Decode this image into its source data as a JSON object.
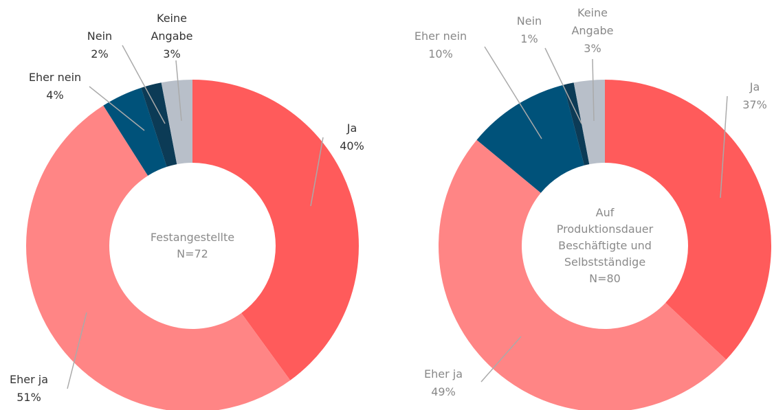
{
  "chart_data": [
    {
      "type": "donut",
      "center_label": [
        "Festangestellte",
        "N=72"
      ],
      "categories": [
        "Ja",
        "Eher ja",
        "Eher nein",
        "Nein",
        "Keine Angabe"
      ],
      "values": [
        40,
        51,
        4,
        2,
        3
      ],
      "value_labels": [
        "40%",
        "51%",
        "4%",
        "2%",
        "3%"
      ],
      "colors": [
        "#ff5b5b",
        "#ff8585",
        "#00527a",
        "#0c3b56",
        "#b8bfc9"
      ]
    },
    {
      "type": "donut",
      "center_label": [
        "Auf",
        "Produktionsdauer",
        "Beschäftigte und",
        "Selbstständige",
        "N=80"
      ],
      "categories": [
        "Ja",
        "Eher ja",
        "Eher nein",
        "Nein",
        "Keine Angabe"
      ],
      "values": [
        37,
        49,
        10,
        1,
        3
      ],
      "value_labels": [
        "37%",
        "49%",
        "10%",
        "1%",
        "3%"
      ],
      "colors": [
        "#ff5b5b",
        "#ff8585",
        "#00527a",
        "#0c3b56",
        "#b8bfc9"
      ]
    }
  ]
}
